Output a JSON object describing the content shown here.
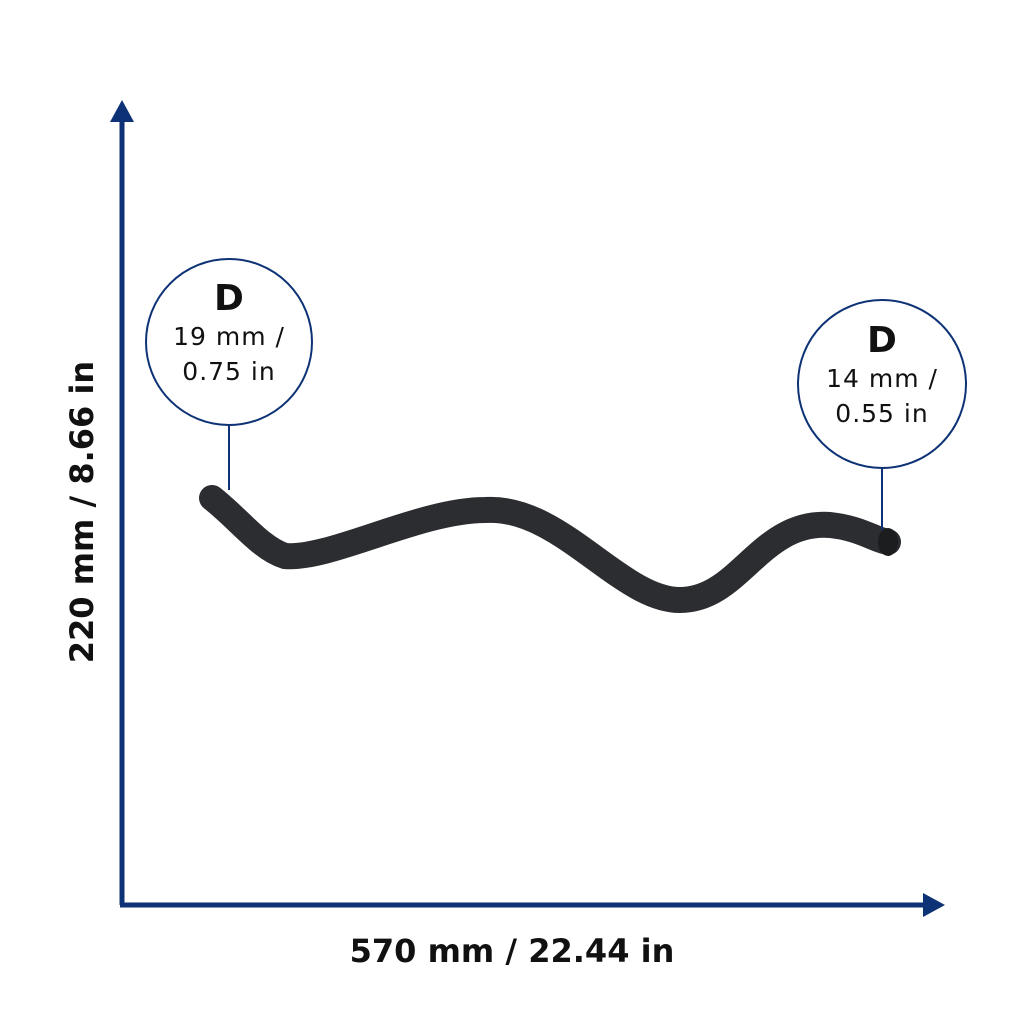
{
  "dimensions": {
    "height": "220 mm / 8.66 in",
    "width": "570 mm / 22.44 in"
  },
  "callouts": [
    {
      "letter": "D",
      "line1": "19 mm /",
      "line2": "0.75 in"
    },
    {
      "letter": "D",
      "line1": "14 mm /",
      "line2": "0.55 in"
    }
  ]
}
